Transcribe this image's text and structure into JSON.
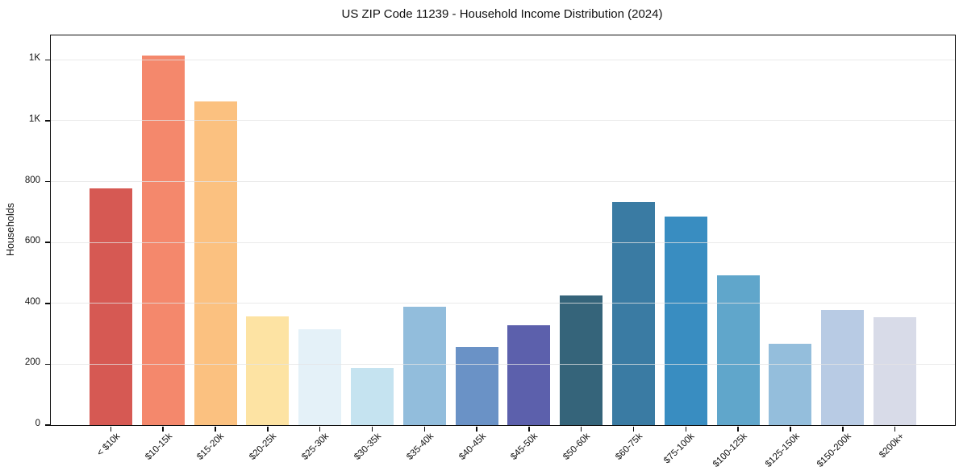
{
  "chart_data": {
    "type": "bar",
    "title": "US ZIP Code 11239 - Household Income Distribution (2024)",
    "xlabel": "",
    "ylabel": "Households",
    "categories": [
      "< $10k",
      "$10-15k",
      "$15-20k",
      "$20-25k",
      "$25-30k",
      "$30-35k",
      "$35-40k",
      "$40-45k",
      "$45-50k",
      "$50-60k",
      "$60-75k",
      "$75-100k",
      "$100-125k",
      "$125-150k",
      "$150-200k",
      "$200k+"
    ],
    "values": [
      777,
      1213,
      1062,
      357,
      314,
      188,
      388,
      256,
      328,
      425,
      732,
      684,
      491,
      267,
      378,
      354
    ],
    "bar_colors": [
      "#d65953",
      "#f4886c",
      "#fbc180",
      "#fde3a3",
      "#e4f1f8",
      "#c5e3f0",
      "#92bddc",
      "#6a92c6",
      "#5c60ac",
      "#35647a",
      "#3a7ba3",
      "#398dc1",
      "#60a6cb",
      "#94bedc",
      "#b8cbe4",
      "#d8dbe8"
    ],
    "ylim": [
      0,
      1280
    ],
    "yticks": [
      {
        "value": 0,
        "label": "0"
      },
      {
        "value": 200,
        "label": "200"
      },
      {
        "value": 400,
        "label": "400"
      },
      {
        "value": 600,
        "label": "600"
      },
      {
        "value": 800,
        "label": "800"
      },
      {
        "value": 1000,
        "label": "1K"
      },
      {
        "value": 1200,
        "label": "1K"
      }
    ],
    "grid": "horizontal",
    "legend": "none",
    "x_tick_rotation_deg": 45
  }
}
